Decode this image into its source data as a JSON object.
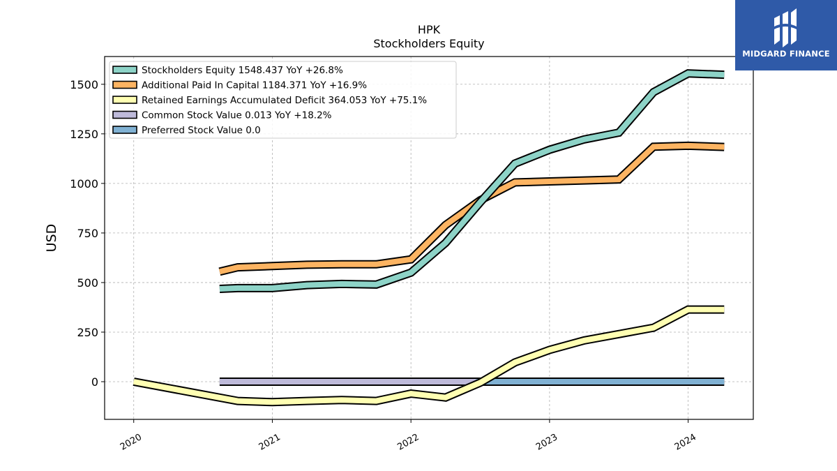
{
  "chart_data": {
    "type": "line",
    "title": "HPK",
    "subtitle": "Stockholders  Equity",
    "ylabel": "USD",
    "xlabel": "",
    "ylim": [
      -190,
      1640
    ],
    "xlim": [
      2019.79,
      2024.47
    ],
    "yticks": [
      0,
      250,
      500,
      750,
      1000,
      1250,
      1500
    ],
    "xticks": [
      {
        "value": 2020,
        "label": "2020"
      },
      {
        "value": 2021,
        "label": "2021"
      },
      {
        "value": 2022,
        "label": "2022"
      },
      {
        "value": 2023,
        "label": "2023"
      },
      {
        "value": 2024,
        "label": "2024"
      }
    ],
    "grid": true,
    "legend_position": "top-left",
    "series": [
      {
        "name": "Stockholders Equity  1548.437 YoY +26.8%",
        "color": "#8dd3c7",
        "x": [
          2020.62,
          2020.75,
          2021.0,
          2021.25,
          2021.5,
          2021.75,
          2022.0,
          2022.25,
          2022.5,
          2022.75,
          2023.0,
          2023.25,
          2023.5,
          2023.75,
          2024.0,
          2024.26
        ],
        "values": [
          468,
          472,
          472,
          487,
          493,
          490,
          550,
          700,
          905,
          1100,
          1170,
          1222,
          1256,
          1460,
          1555,
          1548
        ]
      },
      {
        "name": "Additional Paid In Capital  1184.371 YoY +16.9%",
        "color": "#fdb462",
        "x": [
          2020.62,
          2020.75,
          2021.0,
          2021.25,
          2021.5,
          2021.75,
          2022.0,
          2022.25,
          2022.5,
          2022.75,
          2023.0,
          2023.25,
          2023.5,
          2023.75,
          2024.0,
          2024.26
        ],
        "values": [
          555,
          577,
          583,
          590,
          592,
          592,
          617,
          790,
          915,
          1005,
          1010,
          1015,
          1020,
          1185,
          1190,
          1184
        ]
      },
      {
        "name": "Retained Earnings Accumulated Deficit  364.053 YoY +75.1%",
        "color": "#ffffb3",
        "x": [
          2020.0,
          2020.75,
          2021.0,
          2021.25,
          2021.5,
          2021.75,
          2022.0,
          2022.25,
          2022.5,
          2022.75,
          2023.0,
          2023.25,
          2023.5,
          2023.75,
          2024.0,
          2024.26
        ],
        "values": [
          0,
          -97,
          -103,
          -97,
          -92,
          -97,
          -60,
          -80,
          -5,
          97,
          160,
          208,
          240,
          272,
          364,
          364
        ]
      },
      {
        "name": "Common Stock Value  0.013 YoY +18.2%",
        "color": "#bebada",
        "x": [
          2020.62,
          2020.75,
          2021.0,
          2021.25,
          2021.5,
          2021.75,
          2022.0,
          2022.25,
          2022.5
        ],
        "values": [
          0,
          0,
          0,
          0,
          0,
          0,
          0,
          0,
          0
        ]
      },
      {
        "name": "Preferred Stock Value  0.0",
        "color": "#80b1d3",
        "x": [
          2022.47,
          2022.75,
          2023.0,
          2023.25,
          2023.5,
          2023.75,
          2024.0,
          2024.26
        ],
        "values": [
          0,
          0,
          0,
          0,
          0,
          0,
          0,
          0
        ]
      }
    ]
  },
  "logo": {
    "text": "MIDGARD FINANCE",
    "background": "#2f5aa8"
  }
}
